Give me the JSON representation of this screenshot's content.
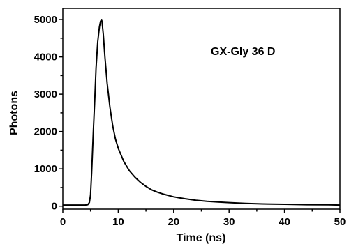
{
  "chart_data": {
    "type": "line",
    "title": "",
    "annotation": "GX-Gly 36 D",
    "xlabel": "Time (ns)",
    "ylabel": "Photons",
    "xlim": [
      0,
      50
    ],
    "ylim": [
      -80,
      5300
    ],
    "x_ticks": [
      0,
      10,
      20,
      30,
      40,
      50
    ],
    "y_ticks": [
      0,
      1000,
      2000,
      3000,
      4000,
      5000
    ],
    "x_tick_labels": [
      "0",
      "10",
      "20",
      "30",
      "40",
      "50"
    ],
    "y_tick_labels": [
      "0",
      "1000",
      "2000",
      "3000",
      "4000",
      "5000"
    ],
    "grid": false,
    "line_color": "#000000",
    "series": [
      {
        "x": [
          0,
          1,
          2,
          3,
          4,
          4.5,
          4.8,
          5.0,
          5.2,
          5.5,
          5.8,
          6.0,
          6.3,
          6.6,
          6.8,
          7.0,
          7.1,
          7.3,
          7.6,
          8.0,
          8.5,
          9.0,
          9.5,
          10,
          11,
          12,
          13,
          14,
          15,
          16,
          17,
          18,
          20,
          22,
          24,
          26,
          28,
          30,
          33,
          36,
          40,
          44,
          48,
          50
        ],
        "y": [
          30,
          30,
          30,
          30,
          30,
          40,
          100,
          300,
          900,
          2000,
          3000,
          3700,
          4400,
          4800,
          4950,
          5000,
          4900,
          4600,
          4000,
          3300,
          2650,
          2150,
          1800,
          1550,
          1200,
          950,
          780,
          640,
          530,
          440,
          380,
          330,
          250,
          200,
          160,
          130,
          110,
          95,
          75,
          60,
          50,
          40,
          35,
          30
        ]
      }
    ]
  }
}
